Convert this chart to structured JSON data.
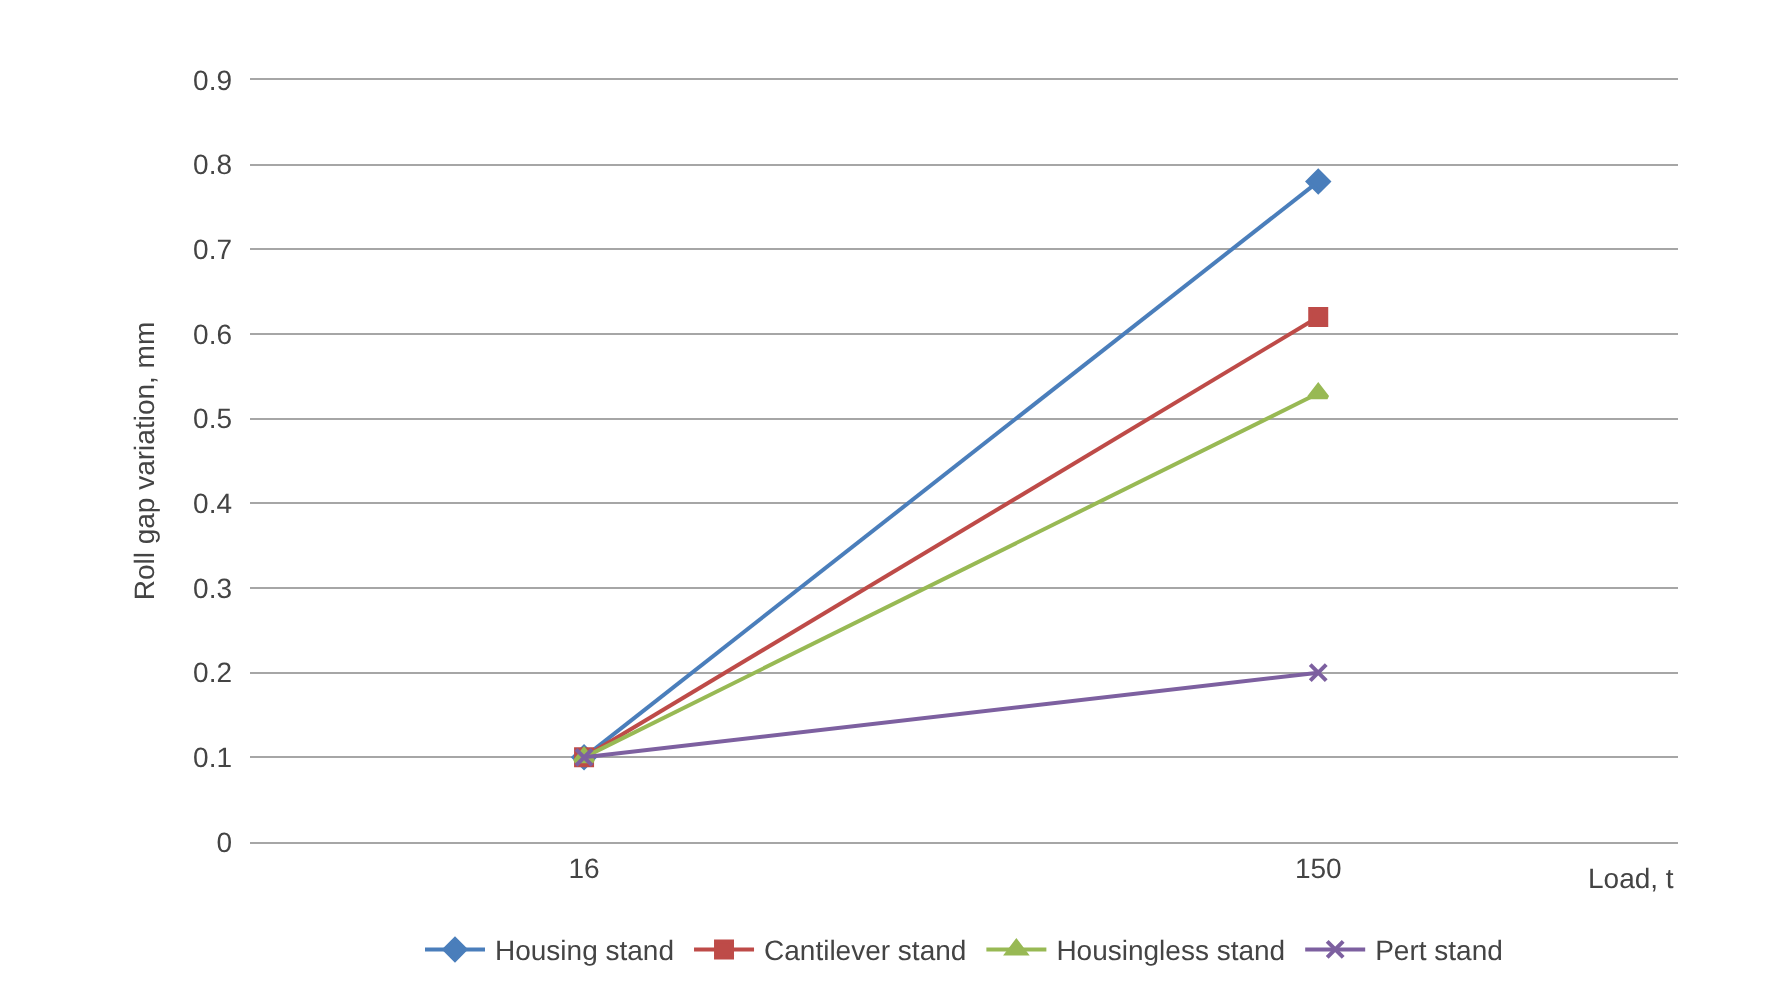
{
  "chart_data": {
    "type": "line",
    "xlabel": "Load, t",
    "ylabel": "Roll gap variation, mm",
    "categories": [
      "16",
      "150"
    ],
    "series": [
      {
        "name": "Housing stand",
        "color": "#4a7ebb",
        "marker": "diamond",
        "values": [
          0.1,
          0.78
        ]
      },
      {
        "name": "Cantilever stand",
        "color": "#be4b48",
        "marker": "square",
        "values": [
          0.1,
          0.62
        ]
      },
      {
        "name": "Housingless stand",
        "color": "#98b954",
        "marker": "triangle",
        "values": [
          0.1,
          0.53
        ]
      },
      {
        "name": "Pert stand",
        "color": "#7d60a0",
        "marker": "cross",
        "values": [
          0.1,
          0.2
        ]
      }
    ],
    "ylim": [
      0,
      0.9
    ],
    "yticks": [
      0,
      0.1,
      0.2,
      0.3,
      0.4,
      0.5,
      0.6,
      0.7,
      0.8,
      0.9
    ],
    "grid": "y",
    "legend": "bottom"
  }
}
